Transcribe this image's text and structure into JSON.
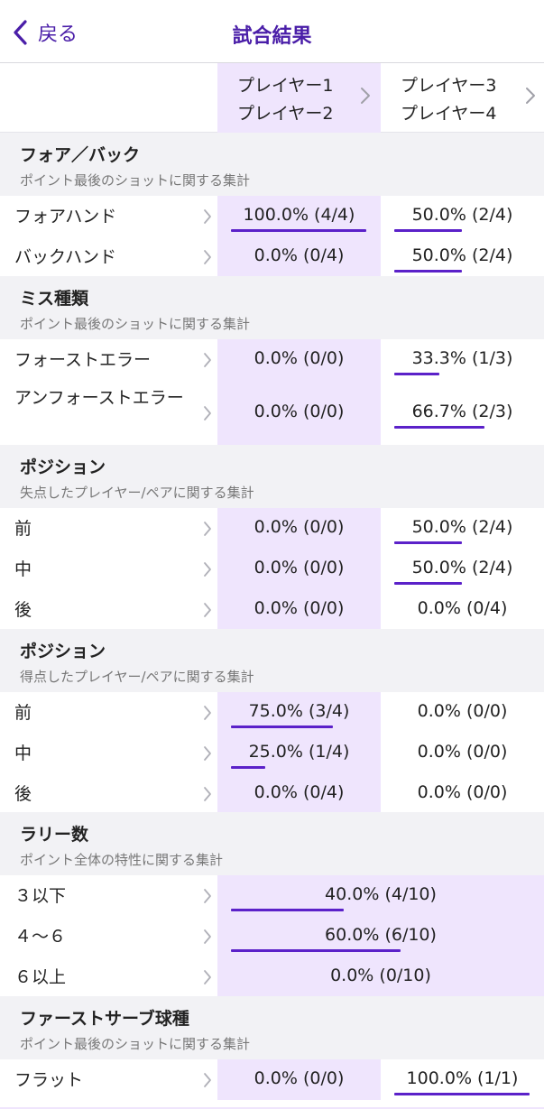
{
  "nav": {
    "back_label": "戻る",
    "title": "試合結果"
  },
  "players": [
    {
      "line1": "プレイヤー1",
      "line2": "プレイヤー2"
    },
    {
      "line1": "プレイヤー3",
      "line2": "プレイヤー4"
    }
  ],
  "colors": {
    "accent": "#4a1ea8",
    "bar": "#5b21c9",
    "highlight": "#efe5fd",
    "section_bg": "#f2f2f5"
  },
  "sections": [
    {
      "title": "フォア／バック",
      "subtitle": "ポイント最後のショットに関する集計",
      "rows": [
        {
          "label": "フォアハンド",
          "a": {
            "text": "100.0% (4/4)",
            "pct": 1.0
          },
          "b": {
            "text": "50.0% (2/4)",
            "pct": 0.5
          },
          "highlight": "a"
        },
        {
          "label": "バックハンド",
          "a": {
            "text": "0.0% (0/4)",
            "pct": 0.0
          },
          "b": {
            "text": "50.0% (2/4)",
            "pct": 0.5
          },
          "highlight": "a"
        }
      ]
    },
    {
      "title": "ミス種類",
      "subtitle": "ポイント最後のショットに関する集計",
      "rows": [
        {
          "label": "フォーストエラー",
          "a": {
            "text": "0.0% (0/0)",
            "pct": 0.0
          },
          "b": {
            "text": "33.3% (1/3)",
            "pct": 0.333
          },
          "highlight": "a"
        },
        {
          "label": "アンフォーストエラー",
          "a": {
            "text": "0.0% (0/0)",
            "pct": 0.0
          },
          "b": {
            "text": "66.7% (2/3)",
            "pct": 0.667
          },
          "highlight": "a"
        }
      ]
    },
    {
      "title": "ポジション",
      "subtitle": "失点したプレイヤー/ペアに関する集計",
      "rows": [
        {
          "label": "前",
          "a": {
            "text": "0.0% (0/0)",
            "pct": 0.0
          },
          "b": {
            "text": "50.0% (2/4)",
            "pct": 0.5
          },
          "highlight": "a"
        },
        {
          "label": "中",
          "a": {
            "text": "0.0% (0/0)",
            "pct": 0.0
          },
          "b": {
            "text": "50.0% (2/4)",
            "pct": 0.5
          },
          "highlight": "a"
        },
        {
          "label": "後",
          "a": {
            "text": "0.0% (0/0)",
            "pct": 0.0
          },
          "b": {
            "text": "0.0% (0/4)",
            "pct": 0.0
          },
          "highlight": "a"
        }
      ]
    },
    {
      "title": "ポジション",
      "subtitle": "得点したプレイヤー/ペアに関する集計",
      "rows": [
        {
          "label": "前",
          "a": {
            "text": "75.0% (3/4)",
            "pct": 0.75
          },
          "b": {
            "text": "0.0% (0/0)",
            "pct": 0.0
          },
          "highlight": "a"
        },
        {
          "label": "中",
          "a": {
            "text": "25.0% (1/4)",
            "pct": 0.25
          },
          "b": {
            "text": "0.0% (0/0)",
            "pct": 0.0
          },
          "highlight": "a"
        },
        {
          "label": "後",
          "a": {
            "text": "0.0% (0/4)",
            "pct": 0.0
          },
          "b": {
            "text": "0.0% (0/0)",
            "pct": 0.0
          },
          "highlight": "a"
        }
      ]
    },
    {
      "title": "ラリー数",
      "subtitle": "ポイント全体の特性に関する集計",
      "rows": [
        {
          "label": "３以下",
          "span": {
            "text": "40.0% (4/10)",
            "pct": 0.4
          }
        },
        {
          "label": "４〜６",
          "span": {
            "text": "60.0% (6/10)",
            "pct": 0.6
          }
        },
        {
          "label": "６以上",
          "span": {
            "text": "0.0% (0/10)",
            "pct": 0.0
          }
        }
      ]
    },
    {
      "title": "ファーストサーブ球種",
      "subtitle": "ポイント最後のショットに関する集計",
      "rows": [
        {
          "label": "フラット",
          "a": {
            "text": "0.0% (0/0)",
            "pct": 0.0
          },
          "b": {
            "text": "100.0% (1/1)",
            "pct": 1.0
          },
          "highlight": "a"
        }
      ]
    }
  ]
}
